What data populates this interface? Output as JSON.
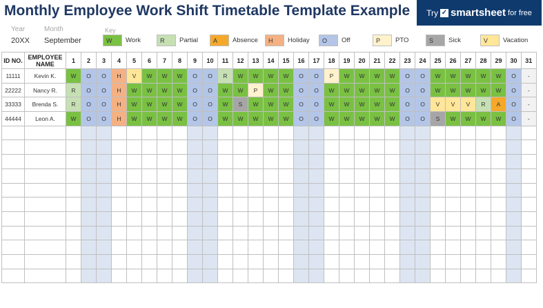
{
  "title": "Monthly Employee Work Shift Timetable Template Example",
  "promo": {
    "try": "Try",
    "brand": "smartsheet",
    "free": "for free"
  },
  "year_label": "Year",
  "year_value": "20XX",
  "month_label": "Month",
  "month_value": "September",
  "key_label": "Key",
  "key": [
    {
      "code": "W",
      "label": "Work"
    },
    {
      "code": "R",
      "label": "Partial"
    },
    {
      "code": "A",
      "label": "Absence"
    },
    {
      "code": "H",
      "label": "Holiday"
    },
    {
      "code": "O",
      "label": "Off"
    },
    {
      "code": "P",
      "label": "PTO"
    },
    {
      "code": "S",
      "label": "Sick"
    },
    {
      "code": "V",
      "label": "Vacation"
    }
  ],
  "colors": {
    "W": "#7ac143",
    "R": "#c6e0b4",
    "A": "#f4a92b",
    "H": "#f4b183",
    "O": "#b4c6e7",
    "P": "#fff2cc",
    "S": "#a6a6a6",
    "V": "#ffe699",
    "-": "#f2f2f2"
  },
  "headers": {
    "id": "ID NO.",
    "name": "EMPLOYEE NAME"
  },
  "days": [
    "1",
    "2",
    "3",
    "4",
    "5",
    "6",
    "7",
    "8",
    "9",
    "10",
    "11",
    "12",
    "13",
    "14",
    "15",
    "16",
    "17",
    "18",
    "19",
    "20",
    "21",
    "22",
    "23",
    "24",
    "25",
    "26",
    "27",
    "28",
    "29",
    "30",
    "31"
  ],
  "weekend_days": [
    2,
    3,
    9,
    10,
    16,
    17,
    23,
    24,
    30
  ],
  "employees": [
    {
      "id": "11111",
      "name": "Kevin K.",
      "shifts": [
        "W",
        "O",
        "O",
        "H",
        "V",
        "W",
        "W",
        "W",
        "O",
        "O",
        "R",
        "W",
        "W",
        "W",
        "W",
        "O",
        "O",
        "P",
        "W",
        "W",
        "W",
        "W",
        "O",
        "O",
        "W",
        "W",
        "W",
        "W",
        "W",
        "O",
        "-"
      ]
    },
    {
      "id": "22222",
      "name": "Nancy R.",
      "shifts": [
        "R",
        "O",
        "O",
        "H",
        "W",
        "W",
        "W",
        "W",
        "O",
        "O",
        "W",
        "W",
        "P",
        "W",
        "W",
        "O",
        "O",
        "W",
        "W",
        "W",
        "W",
        "W",
        "O",
        "O",
        "W",
        "W",
        "W",
        "W",
        "W",
        "O",
        "-"
      ]
    },
    {
      "id": "33333",
      "name": "Brenda S.",
      "shifts": [
        "R",
        "O",
        "O",
        "H",
        "W",
        "W",
        "W",
        "W",
        "O",
        "O",
        "W",
        "S",
        "W",
        "W",
        "W",
        "O",
        "O",
        "W",
        "W",
        "W",
        "W",
        "W",
        "O",
        "O",
        "V",
        "V",
        "V",
        "R",
        "A",
        "O",
        "-"
      ]
    },
    {
      "id": "44444",
      "name": "Leon A.",
      "shifts": [
        "W",
        "O",
        "O",
        "H",
        "W",
        "W",
        "W",
        "W",
        "O",
        "O",
        "W",
        "W",
        "W",
        "W",
        "W",
        "O",
        "O",
        "W",
        "W",
        "W",
        "W",
        "W",
        "O",
        "O",
        "S",
        "W",
        "W",
        "W",
        "W",
        "O",
        "-"
      ]
    }
  ],
  "empty_rows": 11
}
